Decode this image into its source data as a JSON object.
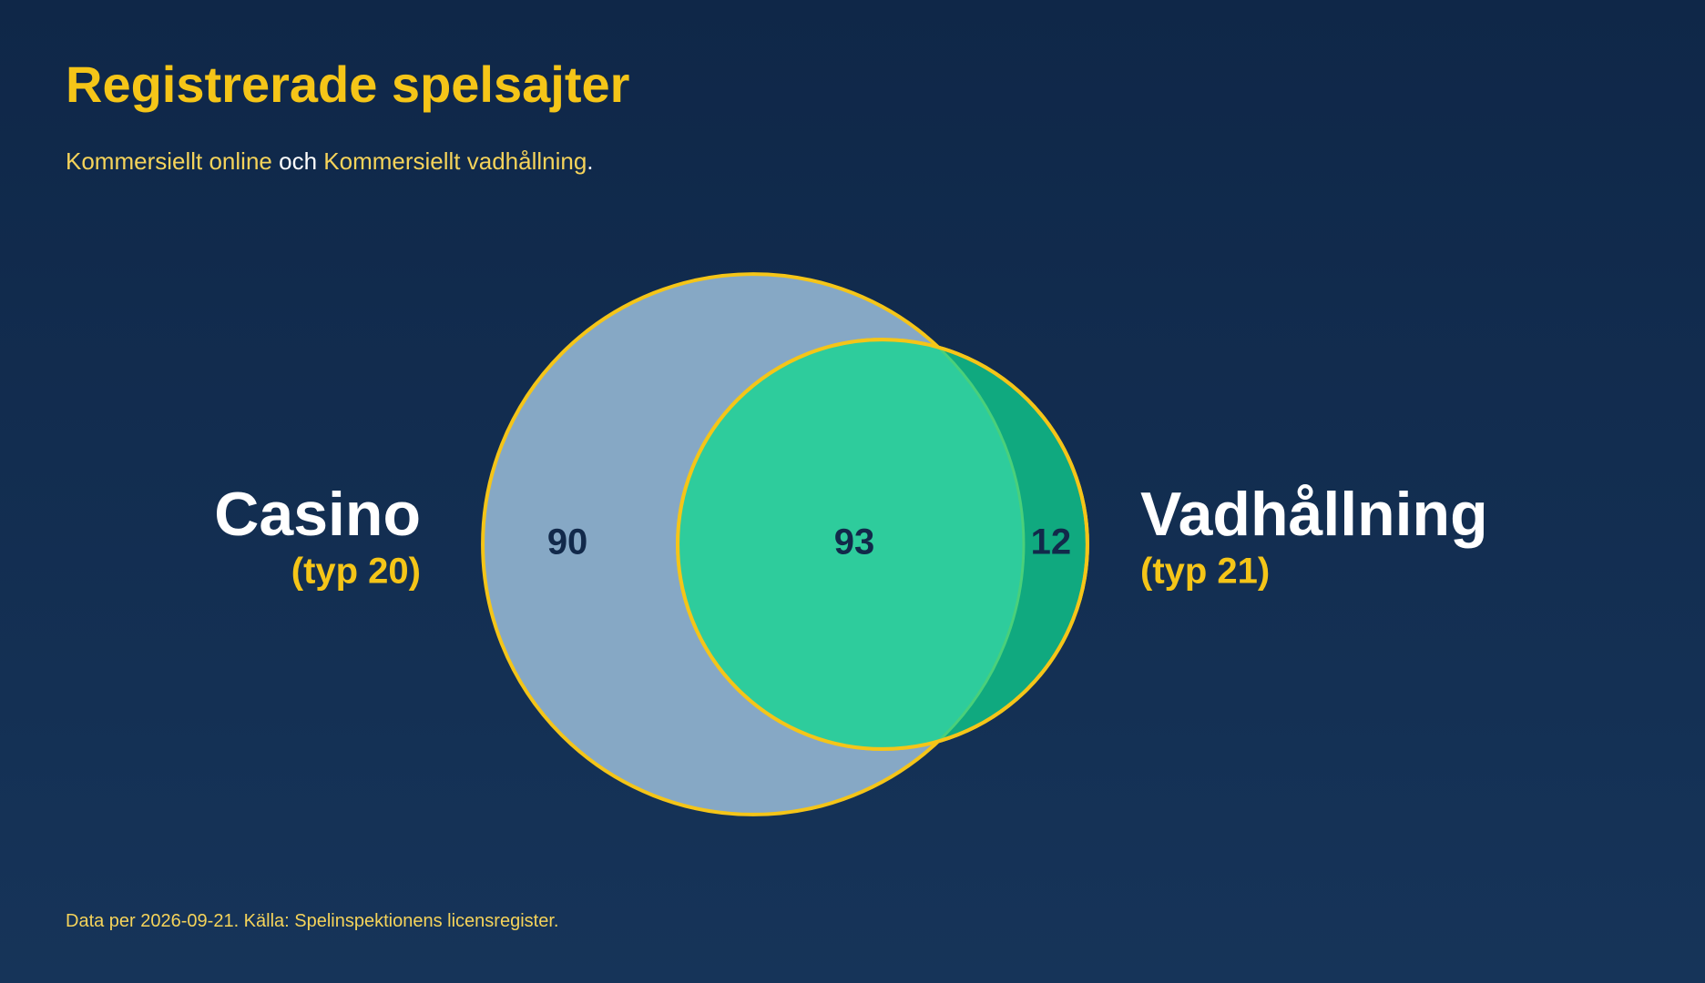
{
  "chart_data": {
    "type": "venn",
    "title": "Registrerade spelsajter",
    "subtitle": [
      {
        "text": "Kommersiellt online",
        "highlight": true
      },
      {
        "text": "och",
        "highlight": false
      },
      {
        "text": "Kommersiellt vadhållning",
        "highlight": true
      },
      {
        "text": ".",
        "highlight": false
      }
    ],
    "series": [
      {
        "name": "Casino",
        "sublabel": "(typ 20)",
        "color": "#86a8c5",
        "only": 90
      },
      {
        "name": "Vadhållning",
        "sublabel": "(typ 21)",
        "color": "#10a97f",
        "only": 12
      }
    ],
    "overlap": 93,
    "overlap_color": "#2ecc9c",
    "outline_color": "#f5c518",
    "footnote": "Data per 2026-09-21. Källa: Spelinspektionens licensregister."
  }
}
